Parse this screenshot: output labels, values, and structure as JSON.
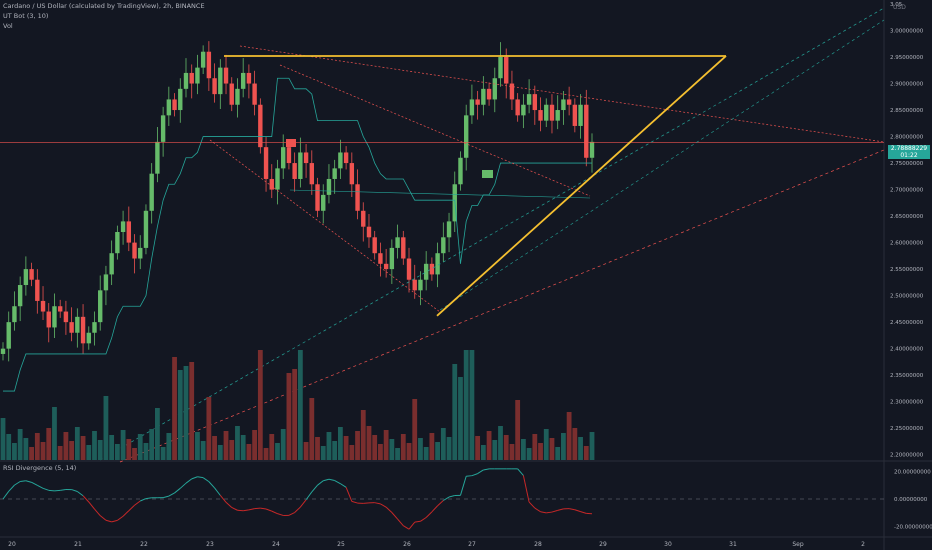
{
  "header": {
    "symbol_line": "Cardano / US Dollar (calculated by TradingView), 2h, BINANCE",
    "indicator_1": "UT Bot (3, 10)",
    "indicator_2": "Vol"
  },
  "rsi_title": "RSI Divergence (5, 14)",
  "currency_badge": "USD",
  "current_price_label": [
    "2.78888229",
    "01:22"
  ],
  "colors": {
    "background": "#131722",
    "up": "#26a69a",
    "down": "#ef5350",
    "up_candle": "#66bb6a",
    "triangle": "#f5c030",
    "ut_bot_line": "#26a69a",
    "resistance_red": "#ef5350",
    "rsi_up": "#26a69a",
    "rsi_down": "#c62828"
  },
  "chart_data": {
    "type": "candlestick",
    "x_ticks": [
      "20",
      "21",
      "22",
      "23",
      "24",
      "25",
      "26",
      "27",
      "28",
      "29",
      "30",
      "31",
      "Sep",
      "2"
    ],
    "y_ticks": [
      "3.05",
      "3.00000000",
      "2.95000000",
      "2.90000000",
      "2.85000000",
      "2.80000000",
      "2.75000000",
      "2.70000000",
      "2.65000000",
      "2.60000000",
      "2.55000000",
      "2.50000000",
      "2.45000000",
      "2.40000000",
      "2.35000000",
      "2.30000000",
      "2.25000000",
      "2.20000000"
    ],
    "price_range": [
      2.19,
      3.05
    ],
    "rsi_ticks": [
      "20.00000000",
      "0.00000000",
      "-20.00000000"
    ],
    "rsi_range": [
      -27,
      27
    ],
    "current_price": 2.78888229,
    "close_path": [
      2.4,
      2.45,
      2.48,
      2.52,
      2.55,
      2.53,
      2.49,
      2.47,
      2.44,
      2.48,
      2.47,
      2.45,
      2.43,
      2.46,
      2.41,
      2.43,
      2.45,
      2.51,
      2.54,
      2.58,
      2.62,
      2.64,
      2.6,
      2.57,
      2.59,
      2.66,
      2.73,
      2.79,
      2.84,
      2.87,
      2.85,
      2.89,
      2.92,
      2.9,
      2.93,
      2.96,
      2.91,
      2.88,
      2.93,
      2.9,
      2.86,
      2.89,
      2.92,
      2.9,
      2.86,
      2.78,
      2.72,
      2.7,
      2.74,
      2.78,
      2.75,
      2.72,
      2.77,
      2.75,
      2.71,
      2.66,
      2.69,
      2.72,
      2.74,
      2.77,
      2.75,
      2.71,
      2.66,
      2.63,
      2.61,
      2.58,
      2.56,
      2.55,
      2.59,
      2.61,
      2.57,
      2.53,
      2.51,
      2.53,
      2.56,
      2.54,
      2.58,
      2.61,
      2.64,
      2.71,
      2.76,
      2.84,
      2.87,
      2.86,
      2.89,
      2.87,
      2.91,
      2.95,
      2.9,
      2.87,
      2.84,
      2.86,
      2.88,
      2.85,
      2.83,
      2.86,
      2.83,
      2.85,
      2.87,
      2.86,
      2.82,
      2.86,
      2.76,
      2.79
    ],
    "volume_max_label": "",
    "annotations": {
      "triangle_top": 2.952,
      "triangle_bottom_low": 2.462,
      "triangle_apex_price": 2.952
    }
  }
}
